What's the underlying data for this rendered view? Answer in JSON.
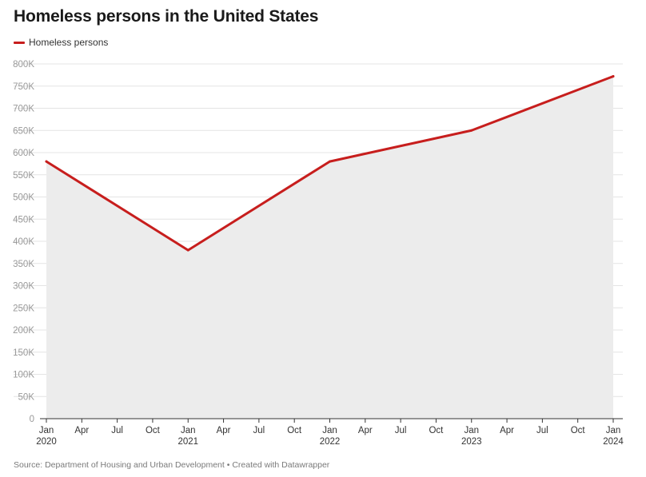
{
  "title": "Homeless persons in the United States",
  "source": "Source: Department of Housing and Urban Development • Created with Datawrapper",
  "colors": {
    "line": "#c71e1d",
    "area": "#ececec",
    "grid": "#e4e4e4",
    "baseline": "#333333",
    "tick_text": "#999999",
    "axis_text": "#333333"
  },
  "chart_data": {
    "type": "area",
    "title": "Homeless persons in the United States",
    "xlabel": "",
    "ylabel": "",
    "ylim": [
      0,
      800000
    ],
    "ytick_values": [
      0,
      50000,
      100000,
      150000,
      200000,
      250000,
      300000,
      350000,
      400000,
      450000,
      500000,
      550000,
      600000,
      650000,
      700000,
      750000,
      800000
    ],
    "ytick_labels": [
      "0",
      "50K",
      "100K",
      "150K",
      "200K",
      "250K",
      "300K",
      "350K",
      "400K",
      "450K",
      "500K",
      "550K",
      "600K",
      "650K",
      "700K",
      "750K",
      "800K"
    ],
    "xlim": [
      2020.0,
      2024.0
    ],
    "xticks": [
      {
        "pos": 2020.0,
        "month": "Jan",
        "year": "2020"
      },
      {
        "pos": 2020.25,
        "month": "Apr",
        "year": ""
      },
      {
        "pos": 2020.5,
        "month": "Jul",
        "year": ""
      },
      {
        "pos": 2020.75,
        "month": "Oct",
        "year": ""
      },
      {
        "pos": 2021.0,
        "month": "Jan",
        "year": "2021"
      },
      {
        "pos": 2021.25,
        "month": "Apr",
        "year": ""
      },
      {
        "pos": 2021.5,
        "month": "Jul",
        "year": ""
      },
      {
        "pos": 2021.75,
        "month": "Oct",
        "year": ""
      },
      {
        "pos": 2022.0,
        "month": "Jan",
        "year": "2022"
      },
      {
        "pos": 2022.25,
        "month": "Apr",
        "year": ""
      },
      {
        "pos": 2022.5,
        "month": "Jul",
        "year": ""
      },
      {
        "pos": 2022.75,
        "month": "Oct",
        "year": ""
      },
      {
        "pos": 2023.0,
        "month": "Jan",
        "year": "2023"
      },
      {
        "pos": 2023.25,
        "month": "Apr",
        "year": ""
      },
      {
        "pos": 2023.5,
        "month": "Jul",
        "year": ""
      },
      {
        "pos": 2023.75,
        "month": "Oct",
        "year": ""
      },
      {
        "pos": 2024.0,
        "month": "Jan",
        "year": "2024"
      }
    ],
    "grid": true,
    "legend_position": "top-left",
    "series": [
      {
        "name": "Homeless persons",
        "x": [
          2020.0,
          2021.0,
          2022.0,
          2023.0,
          2024.0
        ],
        "values": [
          580000,
          380000,
          580000,
          650000,
          772000
        ]
      }
    ]
  }
}
